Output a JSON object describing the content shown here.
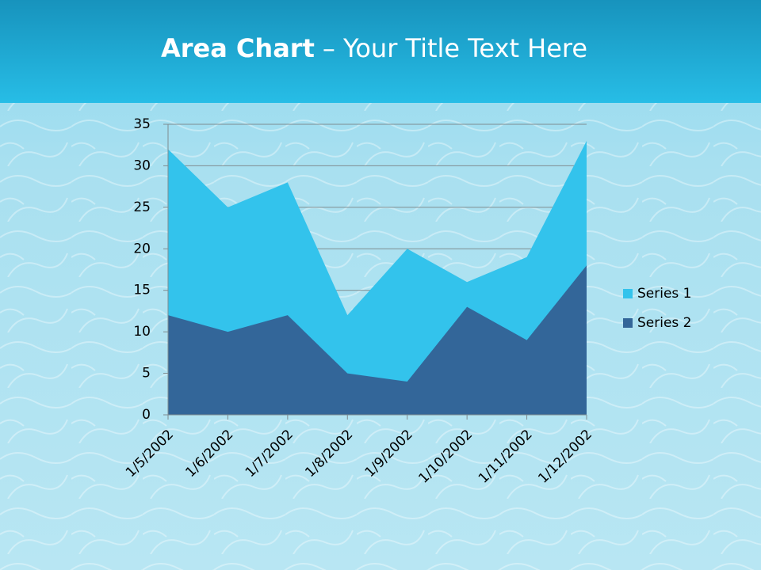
{
  "chart_data": {
    "type": "area",
    "title": [
      "Area Chart",
      "– Your Title Text Here"
    ],
    "categories": [
      "1/5/2002",
      "1/6/2002",
      "1/7/2002",
      "1/8/2002",
      "1/9/2002",
      "1/10/2002",
      "1/11/2002",
      "1/12/2002"
    ],
    "series": [
      {
        "name": "Series 1",
        "color": "#33c3ec",
        "values": [
          32,
          25,
          28,
          12,
          20,
          16,
          19,
          33
        ]
      },
      {
        "name": "Series 2",
        "color": "#336699",
        "values": [
          12,
          10,
          12,
          5,
          4,
          13,
          9,
          18
        ]
      }
    ],
    "ylim": [
      0,
      35
    ],
    "yticks": [
      0,
      5,
      10,
      15,
      20,
      25,
      30,
      35
    ],
    "grid": true,
    "legend": "right"
  }
}
